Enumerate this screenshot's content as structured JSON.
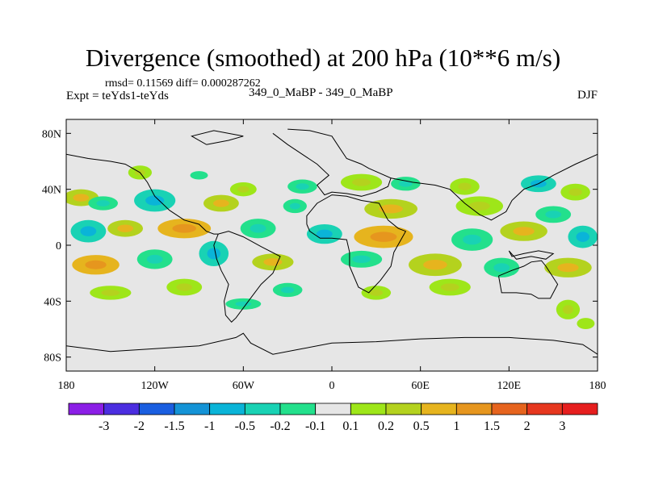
{
  "title": "Divergence (smoothed) at 200 hPa (10**6 m/s)",
  "stats_text": "rmsd= 0.11569 diff= 0.000287262",
  "expt_text": "Expt = teYds1-teYds",
  "runs_text": "349_0_MaBP - 349_0_MaBP",
  "season": "DJF",
  "colors": {
    "background_field": "#e6e6e6",
    "coastline": "#000000"
  },
  "chart_data": {
    "type": "heatmap",
    "variable": "Divergence (smoothed) at 200 hPa",
    "units": "10**6 m/s",
    "lon_range": [
      -180,
      180
    ],
    "lat_range": [
      -90,
      90
    ],
    "x_ticks": [
      {
        "value": -180,
        "label": "180"
      },
      {
        "value": -120,
        "label": "120W"
      },
      {
        "value": -60,
        "label": "60W"
      },
      {
        "value": 0,
        "label": "0"
      },
      {
        "value": 60,
        "label": "60E"
      },
      {
        "value": 120,
        "label": "120E"
      },
      {
        "value": 180,
        "label": "180"
      }
    ],
    "y_ticks": [
      {
        "value": 80,
        "label": "80N"
      },
      {
        "value": 40,
        "label": "40N"
      },
      {
        "value": 0,
        "label": "0"
      },
      {
        "value": -40,
        "label": "40S"
      },
      {
        "value": -80,
        "label": "80S"
      }
    ],
    "colorbar": {
      "colors": [
        "#8b1ee6",
        "#4b2ee0",
        "#1a5ee0",
        "#1493d6",
        "#0ab4d8",
        "#19d2b4",
        "#23e08c",
        "#e6e6e6",
        "#9ee619",
        "#b4d21e",
        "#e6b41e",
        "#e6961e",
        "#e6641e",
        "#e6371e",
        "#e61e1e"
      ],
      "labels": [
        "-3",
        "-2",
        "-1.5",
        "-1",
        "-0.5",
        "-0.2",
        "-0.1",
        "0.1",
        "0.2",
        "0.5",
        "1",
        "1.5",
        "2",
        "3"
      ]
    },
    "blobs": [
      {
        "lon": -130,
        "lat": 52,
        "rx": 8,
        "ry": 5,
        "level": 8
      },
      {
        "lon": -90,
        "lat": 50,
        "rx": 6,
        "ry": 3,
        "level": 6
      },
      {
        "lon": -60,
        "lat": 40,
        "rx": 9,
        "ry": 5,
        "level": 8
      },
      {
        "lon": -20,
        "lat": 42,
        "rx": 10,
        "ry": 5,
        "level": 6
      },
      {
        "lon": 20,
        "lat": 45,
        "rx": 14,
        "ry": 6,
        "level": 8
      },
      {
        "lon": 50,
        "lat": 44,
        "rx": 10,
        "ry": 5,
        "level": 6
      },
      {
        "lon": 90,
        "lat": 42,
        "rx": 10,
        "ry": 6,
        "level": 8
      },
      {
        "lon": 140,
        "lat": 44,
        "rx": 12,
        "ry": 6,
        "level": 5
      },
      {
        "lon": 165,
        "lat": 38,
        "rx": 10,
        "ry": 6,
        "level": 8
      },
      {
        "lon": -170,
        "lat": 34,
        "rx": 12,
        "ry": 6,
        "level": 9
      },
      {
        "lon": -155,
        "lat": 30,
        "rx": 10,
        "ry": 5,
        "level": 6
      },
      {
        "lon": -120,
        "lat": 32,
        "rx": 14,
        "ry": 8,
        "level": 5
      },
      {
        "lon": -75,
        "lat": 30,
        "rx": 12,
        "ry": 6,
        "level": 9
      },
      {
        "lon": -25,
        "lat": 28,
        "rx": 8,
        "ry": 5,
        "level": 6
      },
      {
        "lon": 40,
        "lat": 26,
        "rx": 18,
        "ry": 7,
        "level": 9
      },
      {
        "lon": 100,
        "lat": 28,
        "rx": 16,
        "ry": 7,
        "level": 8
      },
      {
        "lon": 150,
        "lat": 22,
        "rx": 12,
        "ry": 6,
        "level": 6
      },
      {
        "lon": -165,
        "lat": 10,
        "rx": 12,
        "ry": 8,
        "level": 5
      },
      {
        "lon": -140,
        "lat": 12,
        "rx": 12,
        "ry": 6,
        "level": 9
      },
      {
        "lon": -100,
        "lat": 12,
        "rx": 18,
        "ry": 7,
        "level": 10
      },
      {
        "lon": -50,
        "lat": 12,
        "rx": 12,
        "ry": 7,
        "level": 6
      },
      {
        "lon": -5,
        "lat": 8,
        "rx": 12,
        "ry": 7,
        "level": 5
      },
      {
        "lon": 35,
        "lat": 6,
        "rx": 20,
        "ry": 8,
        "level": 10
      },
      {
        "lon": 95,
        "lat": 4,
        "rx": 14,
        "ry": 8,
        "level": 6
      },
      {
        "lon": 130,
        "lat": 10,
        "rx": 16,
        "ry": 7,
        "level": 9
      },
      {
        "lon": 170,
        "lat": 6,
        "rx": 10,
        "ry": 8,
        "level": 5
      },
      {
        "lon": -160,
        "lat": -14,
        "rx": 16,
        "ry": 7,
        "level": 10
      },
      {
        "lon": -120,
        "lat": -10,
        "rx": 12,
        "ry": 7,
        "level": 6
      },
      {
        "lon": -80,
        "lat": -6,
        "rx": 10,
        "ry": 9,
        "level": 5
      },
      {
        "lon": -40,
        "lat": -12,
        "rx": 14,
        "ry": 6,
        "level": 9
      },
      {
        "lon": 20,
        "lat": -10,
        "rx": 14,
        "ry": 6,
        "level": 6
      },
      {
        "lon": 70,
        "lat": -14,
        "rx": 18,
        "ry": 8,
        "level": 9
      },
      {
        "lon": 115,
        "lat": -16,
        "rx": 12,
        "ry": 7,
        "level": 6
      },
      {
        "lon": 160,
        "lat": -16,
        "rx": 16,
        "ry": 7,
        "level": 9
      },
      {
        "lon": -150,
        "lat": -34,
        "rx": 14,
        "ry": 5,
        "level": 8
      },
      {
        "lon": -100,
        "lat": -30,
        "rx": 12,
        "ry": 6,
        "level": 8
      },
      {
        "lon": -30,
        "lat": -32,
        "rx": 10,
        "ry": 5,
        "level": 6
      },
      {
        "lon": 30,
        "lat": -34,
        "rx": 10,
        "ry": 5,
        "level": 8
      },
      {
        "lon": 80,
        "lat": -30,
        "rx": 14,
        "ry": 6,
        "level": 8
      },
      {
        "lon": 160,
        "lat": -46,
        "rx": 8,
        "ry": 7,
        "level": 8
      },
      {
        "lon": -60,
        "lat": -42,
        "rx": 12,
        "ry": 4,
        "level": 6
      },
      {
        "lon": 172,
        "lat": -56,
        "rx": 6,
        "ry": 4,
        "level": 8
      }
    ],
    "coastlines": [
      [
        [
          -30,
          83
        ],
        [
          -15,
          82
        ],
        [
          0,
          78
        ],
        [
          5,
          70
        ],
        [
          10,
          62
        ],
        [
          20,
          58
        ],
        [
          25,
          55
        ],
        [
          40,
          48
        ],
        [
          38,
          42
        ],
        [
          30,
          38
        ],
        [
          20,
          35
        ],
        [
          10,
          37
        ],
        [
          0,
          38
        ],
        [
          -5,
          36
        ],
        [
          -10,
          43
        ],
        [
          -2,
          50
        ],
        [
          -10,
          58
        ],
        [
          -20,
          65
        ],
        [
          -30,
          72
        ],
        [
          -40,
          80
        ]
      ],
      [
        [
          40,
          48
        ],
        [
          55,
          45
        ],
        [
          70,
          43
        ],
        [
          80,
          40
        ],
        [
          90,
          30
        ],
        [
          100,
          22
        ],
        [
          108,
          18
        ],
        [
          118,
          24
        ],
        [
          122,
          32
        ],
        [
          130,
          40
        ],
        [
          140,
          44
        ],
        [
          150,
          50
        ],
        [
          165,
          58
        ],
        [
          180,
          65
        ]
      ],
      [
        [
          -180,
          65
        ],
        [
          -165,
          62
        ],
        [
          -150,
          60
        ],
        [
          -140,
          58
        ],
        [
          -130,
          52
        ],
        [
          -125,
          45
        ],
        [
          -120,
          35
        ],
        [
          -110,
          25
        ],
        [
          -100,
          18
        ],
        [
          -90,
          15
        ],
        [
          -85,
          10
        ],
        [
          -80,
          8
        ],
        [
          -77,
          8
        ]
      ],
      [
        [
          -77,
          8
        ],
        [
          -80,
          0
        ],
        [
          -78,
          -10
        ],
        [
          -75,
          -18
        ],
        [
          -70,
          -28
        ],
        [
          -73,
          -40
        ],
        [
          -72,
          -50
        ],
        [
          -68,
          -55
        ],
        [
          -65,
          -52
        ],
        [
          -58,
          -42
        ],
        [
          -48,
          -28
        ],
        [
          -40,
          -20
        ],
        [
          -35,
          -8
        ],
        [
          -48,
          -1
        ],
        [
          -60,
          6
        ],
        [
          -70,
          10
        ],
        [
          -77,
          8
        ]
      ],
      [
        [
          -17,
          15
        ],
        [
          -15,
          10
        ],
        [
          -8,
          5
        ],
        [
          0,
          5
        ],
        [
          10,
          4
        ],
        [
          12,
          -5
        ],
        [
          12,
          -15
        ],
        [
          18,
          -30
        ],
        [
          25,
          -34
        ],
        [
          33,
          -25
        ],
        [
          40,
          -15
        ],
        [
          42,
          -5
        ],
        [
          50,
          10
        ],
        [
          45,
          12
        ],
        [
          38,
          18
        ],
        [
          32,
          30
        ],
        [
          20,
          32
        ],
        [
          10,
          35
        ],
        [
          0,
          36
        ],
        [
          -10,
          30
        ],
        [
          -17,
          21
        ],
        [
          -17,
          15
        ]
      ],
      [
        [
          113,
          -22
        ],
        [
          115,
          -34
        ],
        [
          125,
          -34
        ],
        [
          135,
          -35
        ],
        [
          140,
          -38
        ],
        [
          148,
          -38
        ],
        [
          153,
          -28
        ],
        [
          145,
          -15
        ],
        [
          142,
          -11
        ],
        [
          135,
          -12
        ],
        [
          130,
          -15
        ],
        [
          122,
          -18
        ],
        [
          113,
          -22
        ]
      ],
      [
        [
          -180,
          -72
        ],
        [
          -150,
          -76
        ],
        [
          -120,
          -74
        ],
        [
          -90,
          -72
        ],
        [
          -65,
          -66
        ],
        [
          -60,
          -63
        ],
        [
          -55,
          -70
        ],
        [
          -40,
          -78
        ],
        [
          -20,
          -74
        ],
        [
          0,
          -70
        ],
        [
          30,
          -69
        ],
        [
          60,
          -67
        ],
        [
          90,
          -66
        ],
        [
          120,
          -66
        ],
        [
          150,
          -68
        ],
        [
          170,
          -71
        ],
        [
          180,
          -78
        ]
      ],
      [
        [
          -180,
          -90
        ],
        [
          180,
          -90
        ]
      ],
      [
        [
          -85,
          72
        ],
        [
          -70,
          75
        ],
        [
          -60,
          78
        ],
        [
          -80,
          82
        ],
        [
          -95,
          78
        ],
        [
          -85,
          72
        ]
      ],
      [
        [
          120,
          -4
        ],
        [
          122,
          -8
        ],
        [
          130,
          -6
        ],
        [
          140,
          -4
        ],
        [
          150,
          -6
        ],
        [
          145,
          -10
        ],
        [
          135,
          -8
        ],
        [
          125,
          -10
        ],
        [
          120,
          -4
        ]
      ]
    ]
  }
}
